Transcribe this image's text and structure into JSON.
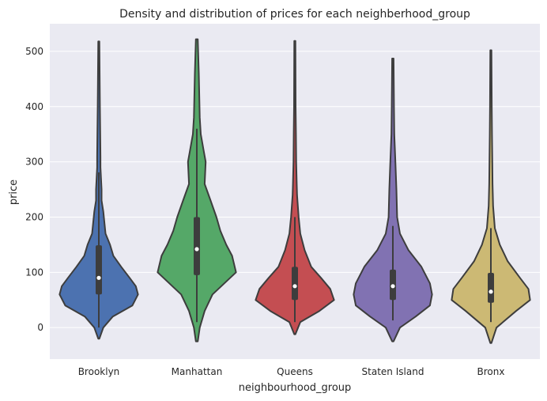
{
  "chart_data": {
    "type": "violin",
    "title": "Density and distribution of prices for each neighberhood_group",
    "xlabel": "neighbourhood_group",
    "ylabel": "price",
    "ylim": [
      -57,
      550
    ],
    "yticks": [
      0,
      100,
      200,
      300,
      400,
      500
    ],
    "grid": true,
    "background_color": "#EAEAF2",
    "categories": [
      "Brooklyn",
      "Manhattan",
      "Queens",
      "Staten Island",
      "Bronx"
    ],
    "colors": [
      "#4C72B0",
      "#55A868",
      "#C44E52",
      "#8172B2",
      "#CCB974"
    ],
    "box_stats": [
      {
        "q1": 60,
        "median": 90,
        "q3": 149,
        "whisker_low": 0,
        "whisker_high": 281
      },
      {
        "q1": 95,
        "median": 142,
        "q3": 200,
        "whisker_low": 10,
        "whisker_high": 360
      },
      {
        "q1": 50,
        "median": 75,
        "q3": 110,
        "whisker_low": 10,
        "whisker_high": 200
      },
      {
        "q1": 50,
        "median": 75,
        "q3": 105,
        "whisker_low": 13,
        "whisker_high": 184
      },
      {
        "q1": 45,
        "median": 65,
        "q3": 99,
        "whisker_low": 10,
        "whisker_high": 180
      }
    ],
    "violin_ranges": [
      {
        "min": -20,
        "max": 518
      },
      {
        "min": -25,
        "max": 522
      },
      {
        "min": -12,
        "max": 519
      },
      {
        "min": -25,
        "max": 487
      },
      {
        "min": -28,
        "max": 502
      }
    ],
    "density_profiles": [
      [
        [
          -20,
          0.01
        ],
        [
          0,
          0.08
        ],
        [
          20,
          0.25
        ],
        [
          40,
          0.6
        ],
        [
          60,
          0.7
        ],
        [
          75,
          0.66
        ],
        [
          90,
          0.55
        ],
        [
          110,
          0.4
        ],
        [
          130,
          0.26
        ],
        [
          150,
          0.2
        ],
        [
          170,
          0.12
        ],
        [
          190,
          0.1
        ],
        [
          210,
          0.08
        ],
        [
          230,
          0.05
        ],
        [
          250,
          0.05
        ],
        [
          270,
          0.04
        ],
        [
          290,
          0.03
        ],
        [
          310,
          0.03
        ],
        [
          350,
          0.025
        ],
        [
          400,
          0.02
        ],
        [
          450,
          0.015
        ],
        [
          518,
          0.01
        ]
      ],
      [
        [
          -25,
          0.01
        ],
        [
          0,
          0.03
        ],
        [
          30,
          0.08
        ],
        [
          60,
          0.16
        ],
        [
          100,
          0.4
        ],
        [
          130,
          0.36
        ],
        [
          150,
          0.3
        ],
        [
          175,
          0.24
        ],
        [
          200,
          0.2
        ],
        [
          230,
          0.14
        ],
        [
          260,
          0.08
        ],
        [
          300,
          0.09
        ],
        [
          320,
          0.07
        ],
        [
          350,
          0.04
        ],
        [
          380,
          0.03
        ],
        [
          420,
          0.025
        ],
        [
          460,
          0.02
        ],
        [
          522,
          0.01
        ]
      ],
      [
        [
          -12,
          0.01
        ],
        [
          10,
          0.1
        ],
        [
          30,
          0.45
        ],
        [
          50,
          0.72
        ],
        [
          70,
          0.65
        ],
        [
          90,
          0.48
        ],
        [
          110,
          0.3
        ],
        [
          140,
          0.18
        ],
        [
          170,
          0.1
        ],
        [
          200,
          0.07
        ],
        [
          240,
          0.04
        ],
        [
          260,
          0.035
        ],
        [
          300,
          0.025
        ],
        [
          350,
          0.02
        ],
        [
          400,
          0.015
        ],
        [
          519,
          0.01
        ]
      ],
      [
        [
          -25,
          0.01
        ],
        [
          0,
          0.1
        ],
        [
          20,
          0.32
        ],
        [
          40,
          0.52
        ],
        [
          60,
          0.55
        ],
        [
          80,
          0.52
        ],
        [
          110,
          0.4
        ],
        [
          140,
          0.22
        ],
        [
          170,
          0.1
        ],
        [
          200,
          0.06
        ],
        [
          250,
          0.05
        ],
        [
          300,
          0.035
        ],
        [
          350,
          0.02
        ],
        [
          400,
          0.015
        ],
        [
          487,
          0.01
        ]
      ],
      [
        [
          -28,
          0.01
        ],
        [
          0,
          0.1
        ],
        [
          30,
          0.45
        ],
        [
          50,
          0.7
        ],
        [
          70,
          0.67
        ],
        [
          90,
          0.52
        ],
        [
          120,
          0.3
        ],
        [
          150,
          0.16
        ],
        [
          180,
          0.07
        ],
        [
          220,
          0.04
        ],
        [
          260,
          0.03
        ],
        [
          300,
          0.025
        ],
        [
          350,
          0.02
        ],
        [
          400,
          0.015
        ],
        [
          502,
          0.01
        ]
      ]
    ]
  }
}
